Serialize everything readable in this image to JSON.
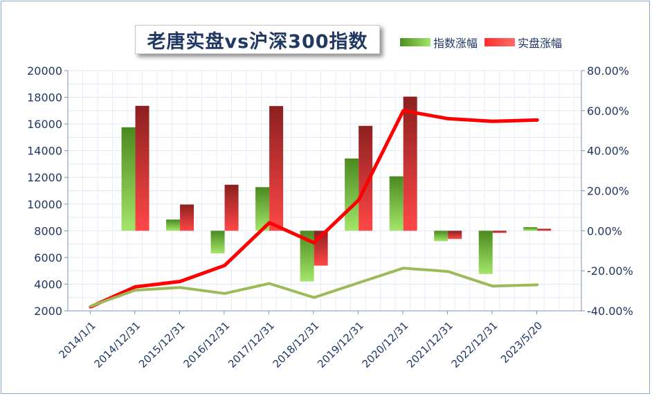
{
  "chart_data": {
    "type": "bar",
    "title": "老唐实盘vs沪深300指数",
    "categories": [
      "2014/1/1",
      "2014/12/31",
      "2015/12/31",
      "2016/12/31",
      "2017/12/31",
      "2018/12/31",
      "2019/12/31",
      "2020/12/31",
      "2021/12/31",
      "2022/12/31",
      "2023/5/20"
    ],
    "left_axis": {
      "ylim": [
        2000,
        20000
      ],
      "ticks": [
        2000,
        4000,
        6000,
        8000,
        10000,
        12000,
        14000,
        16000,
        18000,
        20000
      ]
    },
    "right_axis": {
      "ylim": [
        -40,
        80
      ],
      "ticks": [
        "-40.00%",
        "-20.00%",
        "0.00%",
        "20.00%",
        "40.00%",
        "60.00%",
        "80.00%"
      ]
    },
    "series": [
      {
        "name": "指数涨幅",
        "type": "bar",
        "axis": "right",
        "color": "#7cc242",
        "values_percent": [
          null,
          51.7,
          5.6,
          -11.3,
          21.8,
          -25.3,
          36.1,
          27.2,
          -5.2,
          -21.6,
          1.8
        ]
      },
      {
        "name": "实盘涨幅",
        "type": "bar",
        "axis": "right",
        "color": "#ff3b3b",
        "values_percent": [
          null,
          62.4,
          13.1,
          23.0,
          62.3,
          -17.4,
          52.4,
          67.0,
          -4.1,
          -1.1,
          1.0
        ]
      },
      {
        "type": "line",
        "axis": "left",
        "color": "#ff0000",
        "values": [
          2300,
          3800,
          4200,
          5400,
          8600,
          7100,
          10300,
          17000,
          16400,
          16200,
          16300
        ]
      },
      {
        "type": "line",
        "axis": "left",
        "color": "#9bbb59",
        "values": [
          2350,
          3550,
          3750,
          3300,
          4050,
          3000,
          4100,
          5200,
          4950,
          3850,
          3950
        ]
      }
    ],
    "grid": true,
    "legend": "top-right"
  }
}
